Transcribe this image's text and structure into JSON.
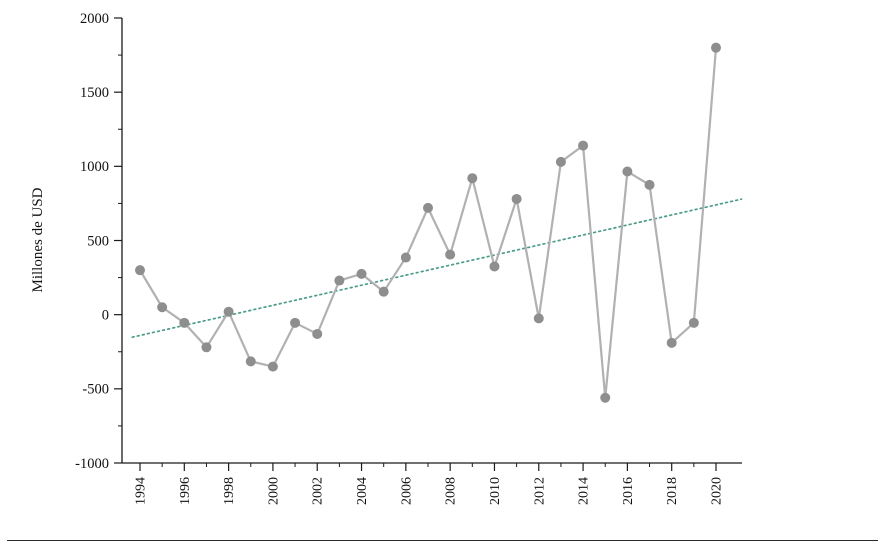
{
  "chart_data": {
    "type": "line",
    "title": "",
    "xlabel": "",
    "ylabel": "Millones de USD",
    "x": [
      1994,
      1995,
      1996,
      1997,
      1998,
      1999,
      2000,
      2001,
      2002,
      2003,
      2004,
      2005,
      2006,
      2007,
      2008,
      2009,
      2010,
      2011,
      2012,
      2013,
      2014,
      2015,
      2016,
      2017,
      2018,
      2019,
      2020
    ],
    "series": [
      {
        "name": "Millones de USD",
        "type": "line-markers",
        "values": [
          300,
          50,
          -55,
          -220,
          20,
          -315,
          -350,
          -55,
          -130,
          230,
          275,
          155,
          385,
          720,
          405,
          920,
          325,
          780,
          -25,
          1030,
          1140,
          -560,
          965,
          875,
          -190,
          -55,
          1800
        ]
      }
    ],
    "trendline": {
      "type": "linear-dotted",
      "start_year": 1994,
      "start_value": -140,
      "end_year": 2020,
      "end_value": 740
    },
    "ylim": [
      -1000,
      2000
    ],
    "ytick_values": [
      -1000,
      -500,
      0,
      500,
      1000,
      1500,
      2000
    ],
    "yticks": [
      "-1000",
      "-500",
      "0",
      "500",
      "1000",
      "1500",
      "2000"
    ],
    "xtick_labels": [
      "1994",
      "1996",
      "1998",
      "2000",
      "2002",
      "2004",
      "2006",
      "2008",
      "2010",
      "2012",
      "2014",
      "2016",
      "2018",
      "2020"
    ],
    "grid": false,
    "legend": null,
    "colors": {
      "line": "#b1b1b1",
      "marker": "#8e8e8e",
      "trend": "#4d9c8c",
      "axis": "#1a1a1a",
      "text": "#111111"
    }
  }
}
